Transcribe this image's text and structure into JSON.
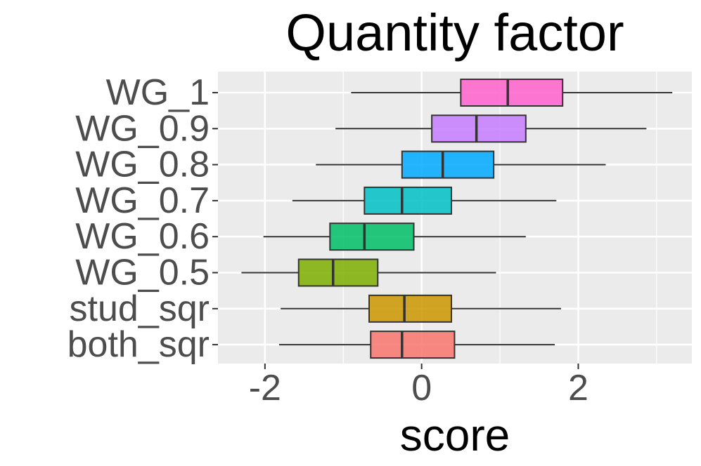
{
  "chart_data": {
    "type": "boxplot",
    "title": "Quantity factor",
    "xlabel": "score",
    "ylabel": "",
    "xlim": [
      -2.6,
      3.45
    ],
    "x_ticks": [
      -2,
      0,
      2
    ],
    "x_tick_labels": [
      "-2",
      "0",
      "2"
    ],
    "x_minor_ticks": [
      -1,
      1,
      3
    ],
    "grid": true,
    "panel_background": "#ebebeb",
    "grid_color": "#ffffff",
    "box_outline_color": "#333333",
    "categories": [
      "WG_1",
      "WG_0.9",
      "WG_0.8",
      "WG_0.7",
      "WG_0.6",
      "WG_0.5",
      "stud_sqr",
      "both_sqr"
    ],
    "boxes": [
      {
        "label": "WG_1",
        "whisker_low": -0.9,
        "q1": 0.5,
        "median": 1.1,
        "q3": 1.8,
        "whisker_high": 3.2,
        "color": "#ff61cc"
      },
      {
        "label": "WG_0.9",
        "whisker_low": -1.1,
        "q1": 0.13,
        "median": 0.7,
        "q3": 1.33,
        "whisker_high": 2.87,
        "color": "#c77cff"
      },
      {
        "label": "WG_0.8",
        "whisker_low": -1.35,
        "q1": -0.25,
        "median": 0.27,
        "q3": 0.92,
        "whisker_high": 2.35,
        "color": "#00a9ff"
      },
      {
        "label": "WG_0.7",
        "whisker_low": -1.65,
        "q1": -0.73,
        "median": -0.25,
        "q3": 0.38,
        "whisker_high": 1.72,
        "color": "#00bfc4"
      },
      {
        "label": "WG_0.6",
        "whisker_low": -2.02,
        "q1": -1.17,
        "median": -0.73,
        "q3": -0.1,
        "whisker_high": 1.33,
        "color": "#00be67"
      },
      {
        "label": "WG_0.5",
        "whisker_low": -2.3,
        "q1": -1.57,
        "median": -1.13,
        "q3": -0.56,
        "whisker_high": 0.95,
        "color": "#7cae00"
      },
      {
        "label": "stud_sqr",
        "whisker_low": -1.8,
        "q1": -0.67,
        "median": -0.22,
        "q3": 0.38,
        "whisker_high": 1.78,
        "color": "#cd9600"
      },
      {
        "label": "both_sqr",
        "whisker_low": -1.82,
        "q1": -0.65,
        "median": -0.25,
        "q3": 0.42,
        "whisker_high": 1.7,
        "color": "#f8766d"
      }
    ]
  }
}
